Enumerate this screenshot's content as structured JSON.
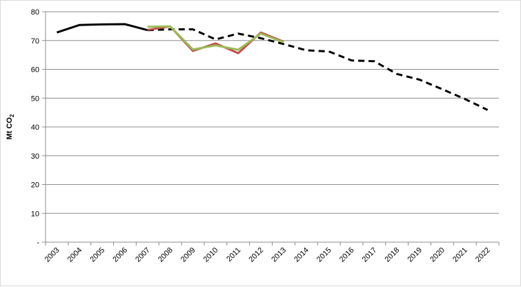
{
  "chart_data": {
    "type": "line",
    "ylabel": "Mt CO2",
    "ylabel_main": "Mt CO",
    "ylabel_sub": "2",
    "ylim": [
      0,
      80
    ],
    "y_ticks": [
      {
        "value": 0,
        "label": "-"
      },
      {
        "value": 10,
        "label": "10"
      },
      {
        "value": 20,
        "label": "20"
      },
      {
        "value": 30,
        "label": "30"
      },
      {
        "value": 40,
        "label": "40"
      },
      {
        "value": 50,
        "label": "50"
      },
      {
        "value": 60,
        "label": "60"
      },
      {
        "value": 70,
        "label": "70"
      },
      {
        "value": 80,
        "label": "80"
      }
    ],
    "grid": true,
    "legend": "none",
    "categories": [
      "2003",
      "2004",
      "2005",
      "2006",
      "2007",
      "2008",
      "2009",
      "2010",
      "2011",
      "2012",
      "2013",
      "2014",
      "2015",
      "2016",
      "2017",
      "2018",
      "2019",
      "2020",
      "2021",
      "2022"
    ],
    "series": [
      {
        "color": "#000000",
        "style": "solid",
        "values": [
          72.8,
          75.4,
          75.6,
          75.7,
          73.6,
          null,
          null,
          null,
          null,
          null,
          null,
          null,
          null,
          null,
          null,
          null,
          null,
          null,
          null,
          null
        ]
      },
      {
        "color": "#000000",
        "style": "dashed",
        "values": [
          null,
          null,
          null,
          null,
          73.6,
          73.9,
          73.9,
          70.4,
          72.4,
          70.8,
          68.8,
          66.6,
          66.2,
          63.1,
          62.8,
          58.4,
          56.4,
          53.1,
          49.7,
          45.9
        ]
      },
      {
        "color": "#c0504d",
        "style": "solid",
        "values": [
          null,
          null,
          null,
          null,
          73.7,
          74.9,
          66.4,
          69.0,
          65.6,
          72.8,
          69.6,
          null,
          null,
          null,
          null,
          null,
          null,
          null,
          null,
          null
        ]
      },
      {
        "color": "#9bbb59",
        "style": "solid",
        "values": [
          null,
          null,
          null,
          null,
          74.8,
          74.9,
          66.9,
          68.3,
          66.8,
          72.4,
          69.4,
          null,
          null,
          null,
          null,
          null,
          null,
          null,
          null,
          null
        ]
      }
    ]
  }
}
